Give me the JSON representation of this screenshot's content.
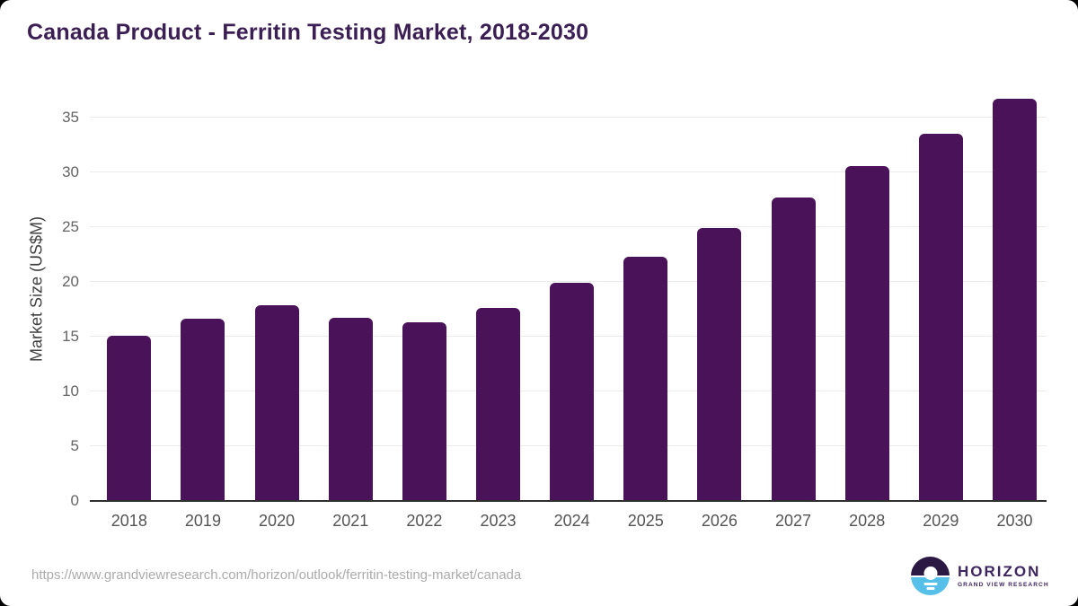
{
  "window": {
    "background_color": "#000000",
    "card_background_color": "#ffffff"
  },
  "header": {
    "title": "Canada Product - Ferritin Testing Market, 2018-2030",
    "title_color": "#3b1e53"
  },
  "chart_data": {
    "type": "bar",
    "title": "Canada Product - Ferritin Testing Market, 2018-2030",
    "categories": [
      "2018",
      "2019",
      "2020",
      "2021",
      "2022",
      "2023",
      "2024",
      "2025",
      "2026",
      "2027",
      "2028",
      "2029",
      "2030"
    ],
    "values": [
      15.1,
      16.6,
      17.9,
      16.7,
      16.3,
      17.6,
      19.9,
      22.3,
      24.9,
      27.7,
      30.6,
      33.5,
      36.7
    ],
    "series_name": "Market Size",
    "xlabel": "",
    "ylabel": "Market Size (US$M)",
    "ylim": [
      0,
      37.5
    ],
    "yticks": [
      0,
      5,
      10,
      15,
      20,
      25,
      30,
      35
    ],
    "grid": true,
    "legend": false,
    "bar_color": "#4a1259",
    "gridline_color": "#ebebeb",
    "axis_line_color": "#2f2f2f",
    "y_tick_color": "#646464",
    "x_tick_color": "#545454",
    "axis_title_color": "#3f3f3f"
  },
  "footer": {
    "source_url": "https://www.grandviewresearch.com/horizon/outlook/ferritin-testing-market/canada",
    "source_url_color": "#ababab",
    "logo": {
      "brand": "HORIZON",
      "subtitle": "GRAND VIEW RESEARCH",
      "text_color": "#3d2660",
      "icon_top_color": "#2b1843",
      "icon_bottom_color": "#56c0e9",
      "icon_sun": "sun-over-water-icon"
    }
  }
}
